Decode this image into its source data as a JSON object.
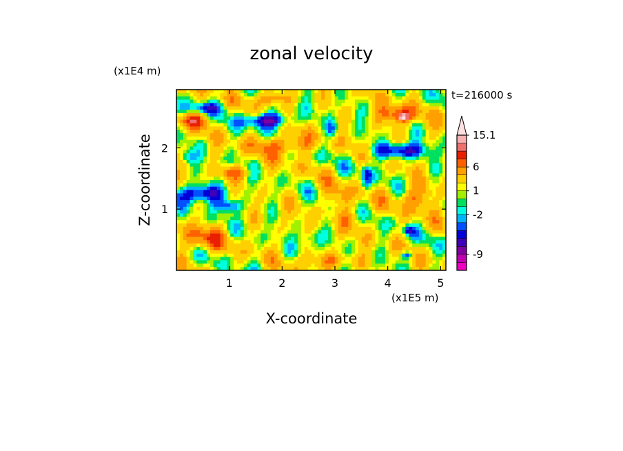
{
  "chart_data": {
    "type": "heatmap",
    "title": "zonal velocity",
    "xlabel": "X-coordinate",
    "ylabel": "Z-coordinate",
    "x_unit": "(x1E5 m)",
    "y_unit": "(x1E4 m)",
    "time_label": "t=216000 s",
    "x_ticks": [
      1,
      2,
      3,
      4,
      5
    ],
    "y_ticks": [
      1,
      2
    ],
    "xlim": [
      0,
      5.1
    ],
    "ylim": [
      0,
      2.95
    ],
    "grid": false,
    "colorbar": {
      "levels": [
        -12,
        -10.5,
        -9,
        -7.5,
        -6,
        -4.5,
        -3,
        -2,
        -1,
        0,
        1,
        2,
        4,
        6,
        8,
        10,
        12,
        15.1
      ],
      "colors": [
        "#f000c0",
        "#c000b0",
        "#8000a0",
        "#4000b8",
        "#0000d8",
        "#0050ff",
        "#00b4ff",
        "#00ffe0",
        "#00e060",
        "#a0f000",
        "#ffff00",
        "#ffd000",
        "#ffa000",
        "#ff6000",
        "#e82000",
        "#f07070",
        "#f8b0b0",
        "#ffe0e0"
      ],
      "tick_labels": [
        "15.1",
        "6",
        "1",
        "-2",
        "-9"
      ],
      "tick_values": [
        15.1,
        6,
        1,
        -2,
        -9
      ],
      "extend": "max"
    },
    "features": [
      {
        "x": 1.75,
        "z": 2.45,
        "sx": 0.45,
        "sz": 0.12,
        "v": -9
      },
      {
        "x": 4.25,
        "z": 1.95,
        "sx": 0.5,
        "sz": 0.12,
        "v": -8
      },
      {
        "x": 0.45,
        "z": 1.25,
        "sx": 0.45,
        "sz": 0.14,
        "v": -9
      },
      {
        "x": 1.0,
        "z": 1.05,
        "sx": 0.25,
        "sz": 0.1,
        "v": -6
      },
      {
        "x": 0.55,
        "z": 2.65,
        "sx": 0.35,
        "sz": 0.1,
        "v": -5
      },
      {
        "x": 0.2,
        "z": 1.85,
        "sx": 0.15,
        "sz": 0.1,
        "v": -4
      },
      {
        "x": 2.55,
        "z": 0.5,
        "sx": 0.2,
        "sz": 0.15,
        "v": -3.5
      },
      {
        "x": 4.4,
        "z": 0.65,
        "sx": 0.1,
        "sz": 0.07,
        "v": -6
      },
      {
        "x": 4.35,
        "z": 0.25,
        "sx": 0.12,
        "sz": 0.06,
        "v": -6
      },
      {
        "x": 3.6,
        "z": 1.55,
        "sx": 0.1,
        "sz": 0.2,
        "v": -6
      },
      {
        "x": 2.95,
        "z": 2.3,
        "sx": 0.12,
        "sz": 0.15,
        "v": -4
      },
      {
        "x": 2.05,
        "z": 2.05,
        "sx": 0.55,
        "sz": 0.15,
        "v": 6
      },
      {
        "x": 1.8,
        "z": 2.8,
        "sx": 0.35,
        "sz": 0.1,
        "v": 5
      },
      {
        "x": 4.2,
        "z": 2.55,
        "sx": 0.35,
        "sz": 0.15,
        "v": 7
      },
      {
        "x": 4.3,
        "z": 2.5,
        "sx": 0.08,
        "sz": 0.05,
        "v": 12
      },
      {
        "x": 0.5,
        "z": 0.5,
        "sx": 0.4,
        "sz": 0.2,
        "v": 5
      },
      {
        "x": 2.9,
        "z": 0.15,
        "sx": 0.5,
        "sz": 0.12,
        "v": 4
      },
      {
        "x": 0.3,
        "z": 2.45,
        "sx": 0.3,
        "sz": 0.12,
        "v": 6
      },
      {
        "x": 4.55,
        "z": 1.2,
        "sx": 0.3,
        "sz": 0.2,
        "v": 5
      },
      {
        "x": 1.1,
        "z": 1.6,
        "sx": 0.3,
        "sz": 0.1,
        "v": 5
      },
      {
        "x": 3.3,
        "z": 0.9,
        "sx": 0.35,
        "sz": 0.25,
        "v": 2
      },
      {
        "x": 3.05,
        "z": 1.2,
        "sx": 0.25,
        "sz": 0.2,
        "v": 3
      }
    ]
  }
}
